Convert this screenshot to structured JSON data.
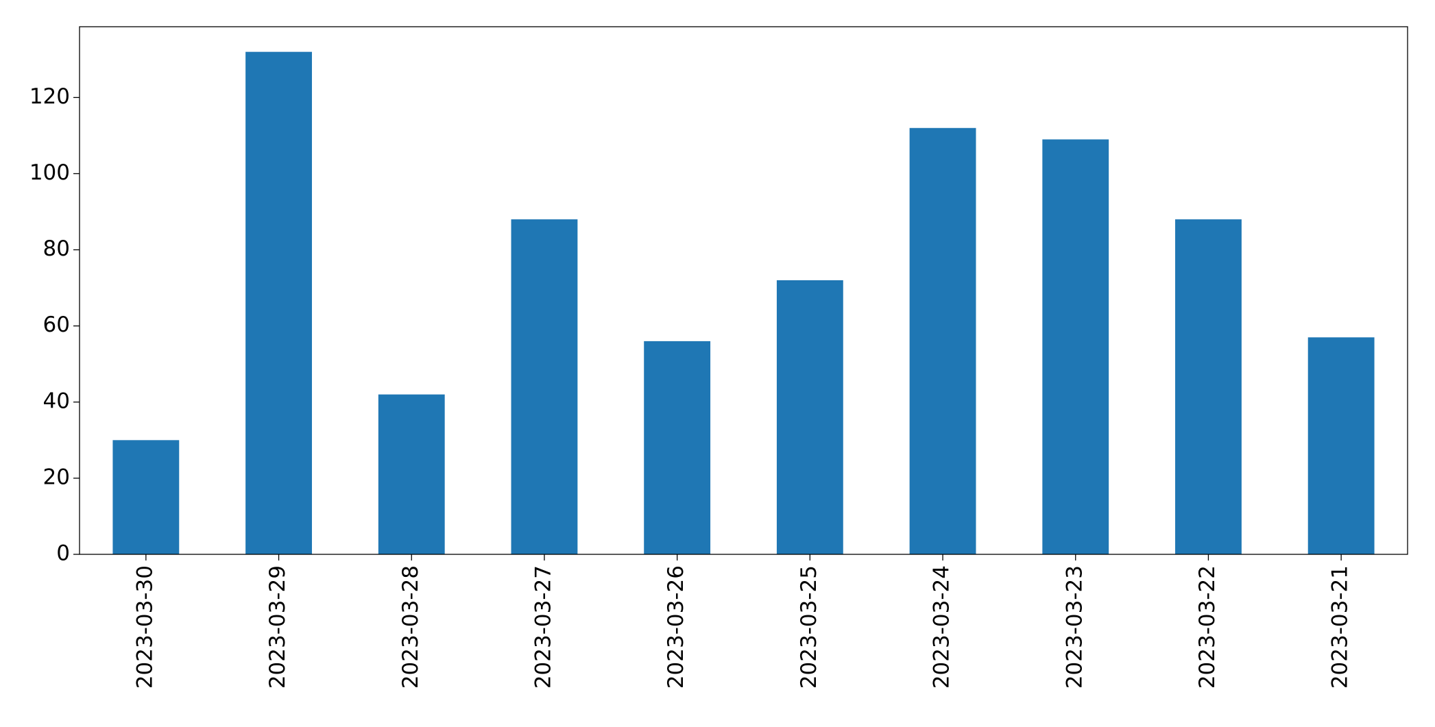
{
  "chart_data": {
    "type": "bar",
    "categories": [
      "2023-03-30",
      "2023-03-29",
      "2023-03-28",
      "2023-03-27",
      "2023-03-26",
      "2023-03-25",
      "2023-03-24",
      "2023-03-23",
      "2023-03-22",
      "2023-03-21"
    ],
    "values": [
      30,
      132,
      42,
      88,
      56,
      72,
      112,
      109,
      88,
      57
    ],
    "color": "#1f77b4",
    "ylim": [
      0,
      138.6
    ],
    "yticks": [
      0,
      20,
      40,
      60,
      80,
      100,
      120
    ],
    "grid": false
  }
}
